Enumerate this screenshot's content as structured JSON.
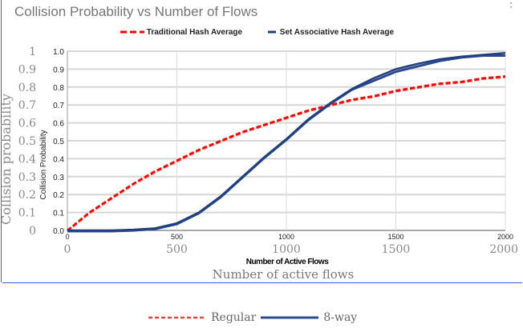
{
  "chart_data": [
    {
      "type": "line",
      "title": "Collision Probability vs Number of Flows",
      "xlabel": "Number of Active Flows",
      "ylabel": "Collision Probability",
      "xlim": [
        0,
        2000
      ],
      "ylim": [
        0,
        1.0
      ],
      "xticks": [
        "0",
        "500",
        "1000",
        "1500",
        "2000"
      ],
      "yticks": [
        "0.0",
        "0.1",
        "0.2",
        "0.3",
        "0.4",
        "0.5",
        "0.6",
        "0.7",
        "0.8",
        "0.9",
        "1.0"
      ],
      "grid": true,
      "legend": "top",
      "x": [
        0,
        100,
        200,
        300,
        400,
        500,
        600,
        700,
        800,
        900,
        1000,
        1100,
        1200,
        1300,
        1400,
        1500,
        1600,
        1700,
        1800,
        1900,
        2000
      ],
      "series": [
        {
          "name": "Traditional Hash Average",
          "color": "#ff0000",
          "style": "dashed",
          "values": [
            0,
            0.1,
            0.18,
            0.26,
            0.33,
            0.39,
            0.45,
            0.5,
            0.55,
            0.59,
            0.63,
            0.67,
            0.7,
            0.73,
            0.75,
            0.78,
            0.8,
            0.82,
            0.83,
            0.85,
            0.86
          ]
        },
        {
          "name": "Set Associative Hash Average",
          "color": "#1f3f7f",
          "style": "solid",
          "values": [
            0,
            0,
            0,
            0.004,
            0.012,
            0.04,
            0.1,
            0.19,
            0.3,
            0.41,
            0.51,
            0.62,
            0.71,
            0.79,
            0.85,
            0.9,
            0.93,
            0.955,
            0.97,
            0.98,
            0.99
          ]
        }
      ]
    },
    {
      "type": "line",
      "xlabel": "Number of active flows",
      "ylabel": "Collision probability",
      "xlim": [
        0,
        2000
      ],
      "ylim": [
        0,
        1.0
      ],
      "xticks": [
        "0",
        "500",
        "1000",
        "1500",
        "2000"
      ],
      "yticks": [
        "0",
        "0.1",
        "0.2",
        "0.3",
        "0.4",
        "0.5",
        "0.6",
        "0.7",
        "0.8",
        "0.9",
        "1"
      ],
      "legend": "bottom",
      "x": [
        0,
        100,
        200,
        300,
        400,
        500,
        600,
        700,
        800,
        900,
        1000,
        1100,
        1200,
        1300,
        1400,
        1500,
        1600,
        1700,
        1800,
        1900,
        2000
      ],
      "series": [
        {
          "name": "Regular",
          "color": "#ff3b30",
          "style": "dashed",
          "values": [
            0,
            0.1,
            0.18,
            0.26,
            0.33,
            0.39,
            0.45,
            0.5,
            0.55,
            0.59,
            0.63,
            0.67,
            0.7,
            0.73,
            0.75,
            0.78,
            0.8,
            0.82,
            0.83,
            0.85,
            0.86
          ]
        },
        {
          "name": "8-way",
          "color": "#2b4a8f",
          "style": "solid",
          "values": [
            0,
            0,
            0,
            0.004,
            0.012,
            0.04,
            0.1,
            0.19,
            0.3,
            0.41,
            0.51,
            0.62,
            0.71,
            0.79,
            0.84,
            0.89,
            0.92,
            0.95,
            0.97,
            0.98,
            0.98
          ]
        }
      ]
    }
  ]
}
